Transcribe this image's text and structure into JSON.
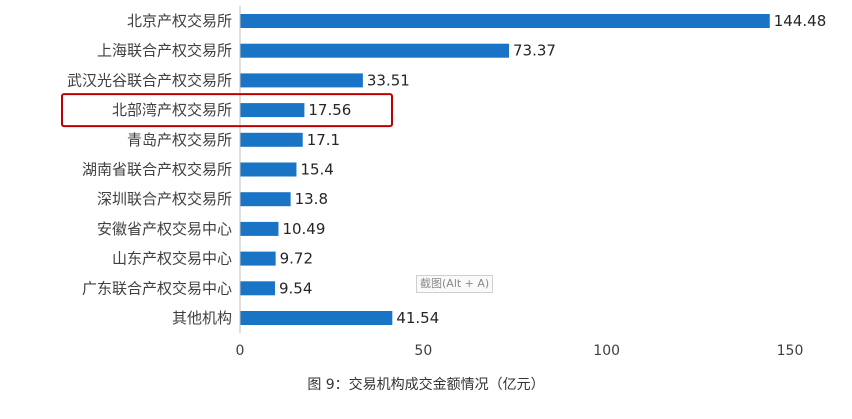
{
  "colors": {
    "bar": "#1a74c6",
    "axis": "#bfbfbf",
    "highlight": "#c00000"
  },
  "chart_data": {
    "type": "bar",
    "orientation": "horizontal",
    "categories": [
      "北京产权交易所",
      "上海联合产权交易所",
      "武汉光谷联合产权交易所",
      "北部湾产权交易所",
      "青岛产权交易所",
      "湖南省联合产权交易所",
      "深圳联合产权交易所",
      "安徽省产权交易中心",
      "山东产权交易中心",
      "广东联合产权交易中心",
      "其他机构"
    ],
    "values": [
      144.48,
      73.37,
      33.51,
      17.56,
      17.1,
      15.4,
      13.8,
      10.49,
      9.72,
      9.54,
      41.54
    ],
    "value_labels": [
      "144.48",
      "73.37",
      "33.51",
      "17.56",
      "17.1",
      "15.4",
      "13.8",
      "10.49",
      "9.72",
      "9.54",
      "41.54"
    ],
    "xlim": [
      0,
      150
    ],
    "xticks": [
      0,
      50,
      100,
      150
    ],
    "grid": false,
    "highlighted_category": "北部湾产权交易所",
    "caption": "图 9：交易机构成交金额情况（亿元）"
  },
  "watermark": "截图(Alt + A)"
}
